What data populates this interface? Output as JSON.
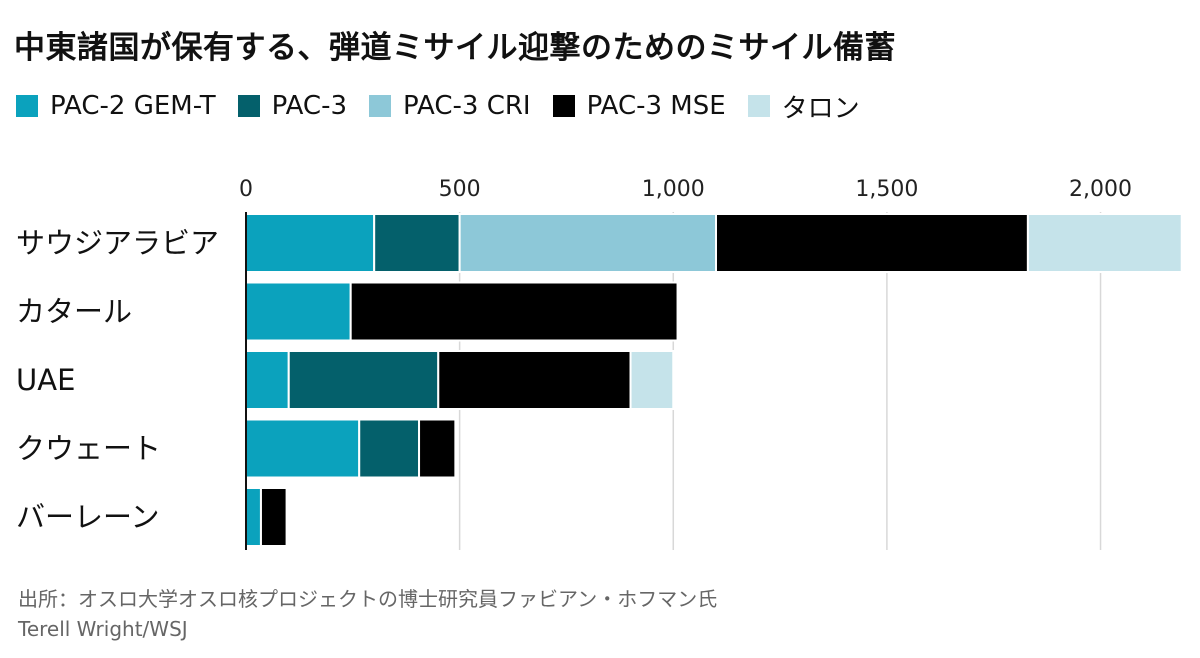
{
  "title": "中東諸国が保有する、弾道ミサイル迎撃のためのミサイル備蓄",
  "legend": [
    {
      "label": "PAC-2 GEM-T",
      "color": "#0ba2bd"
    },
    {
      "label": "PAC-3",
      "color": "#04606b"
    },
    {
      "label": "PAC-3 CRI",
      "color": "#8dc8d8"
    },
    {
      "label": "PAC-3 MSE",
      "color": "#000000"
    },
    {
      "label": "タロン",
      "color": "#c5e3ea"
    }
  ],
  "chart_data": {
    "type": "bar",
    "orientation": "horizontal",
    "stacked": true,
    "categories": [
      "サウジアラビア",
      "カタール",
      "UAE",
      "クウェート",
      "バーレーン"
    ],
    "series": [
      {
        "name": "PAC-2 GEM-T",
        "values": [
          300,
          245,
          100,
          265,
          35
        ]
      },
      {
        "name": "PAC-3",
        "values": [
          200,
          0,
          350,
          140,
          0
        ]
      },
      {
        "name": "PAC-3 CRI",
        "values": [
          600,
          0,
          0,
          0,
          0
        ]
      },
      {
        "name": "PAC-3 MSE",
        "values": [
          730,
          765,
          450,
          85,
          60
        ]
      },
      {
        "name": "タロン",
        "values": [
          360,
          0,
          100,
          0,
          0
        ]
      }
    ],
    "xlim": [
      0,
      2200
    ],
    "xticks": [
      0,
      500,
      1000,
      1500,
      2000
    ],
    "xtick_labels": [
      "0",
      "500",
      "1,000",
      "1,500",
      "2,000"
    ],
    "grid": true,
    "axis_position": "top",
    "legend_position": "top-left"
  },
  "source": "出所：オスロ大学オスロ核プロジェクトの博士研究員ファビアン・ホフマン氏",
  "credit": "Terell Wright/WSJ"
}
